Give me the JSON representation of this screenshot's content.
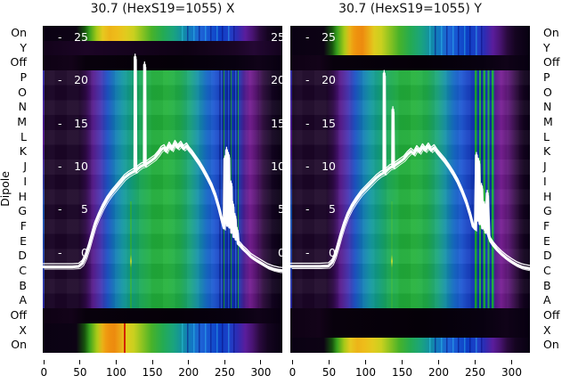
{
  "figure": {
    "titles": {
      "left": "30.7 (HexS19=1055) X",
      "right": "30.7 (HexS19=1055) Y"
    },
    "dipole_axis_label": "Dipole",
    "row_labels": [
      "On",
      "Y",
      "Off",
      "P",
      "O",
      "N",
      "M",
      "L",
      "K",
      "J",
      "I",
      "H",
      "G",
      "F",
      "E",
      "D",
      "C",
      "B",
      "A",
      "Off",
      "X",
      "On"
    ],
    "yticks_inside": [
      {
        "dash": "-",
        "label": "25"
      },
      {
        "dash": "-",
        "label": "20"
      },
      {
        "dash": "-",
        "label": "15"
      },
      {
        "dash": "-",
        "label": "10"
      },
      {
        "dash": "-",
        "label": "5"
      },
      {
        "dash": "-",
        "label": "0"
      }
    ],
    "yticks_right": [
      {
        "label": "25"
      },
      {
        "label": "20"
      },
      {
        "label": "15"
      },
      {
        "label": "10"
      },
      {
        "label": "5"
      },
      {
        "label": "0"
      }
    ],
    "xticks": [
      {
        "label": "0"
      },
      {
        "label": "50"
      },
      {
        "label": "100"
      },
      {
        "label": "150"
      },
      {
        "label": "200"
      },
      {
        "label": "250"
      },
      {
        "label": "300"
      }
    ],
    "colors": {
      "curve": "#ffffff",
      "background": "#ffffff",
      "tick_text_inside": "#ffffff",
      "label_text": "#000000",
      "colormap": "nipy_spectral-like (black-purple-blue-green-yellow-orange)"
    }
  },
  "chart_data": {
    "type": "heatmap",
    "description": "Two heatmap panels (dipole rows vs position 0-330) with overlaid white line profiles",
    "x_range": [
      0,
      330
    ],
    "y_value_range": [
      0,
      25
    ],
    "row_categories": [
      "On",
      "Y",
      "Off",
      "P",
      "O",
      "N",
      "M",
      "L",
      "K",
      "J",
      "I",
      "H",
      "G",
      "F",
      "E",
      "D",
      "C",
      "B",
      "A",
      "Off",
      "X",
      "On"
    ],
    "panels": [
      {
        "title": "30.7 (HexS19=1055) X",
        "bright_rows_top": [
          "On"
        ],
        "bright_rows_bottom": [
          "X",
          "On"
        ],
        "dark_rows": [
          "Y",
          "Off",
          "Off"
        ],
        "red_marker_x": 112,
        "curve": [
          [
            0,
            -1.6
          ],
          [
            20,
            -1.6
          ],
          [
            40,
            -1.6
          ],
          [
            49,
            -1.55
          ],
          [
            54,
            -1.2
          ],
          [
            58,
            -0.5
          ],
          [
            63,
            0.8
          ],
          [
            67,
            2.0
          ],
          [
            71,
            3.2
          ],
          [
            76,
            4.2
          ],
          [
            82,
            5.3
          ],
          [
            88,
            6.2
          ],
          [
            94,
            6.9
          ],
          [
            100,
            7.5
          ],
          [
            106,
            8.1
          ],
          [
            112,
            8.7
          ],
          [
            118,
            9.1
          ],
          [
            124,
            9.4
          ],
          [
            126.6,
            9.5
          ],
          [
            127,
            22.7
          ],
          [
            127.6,
            9.5
          ],
          [
            131,
            9.8
          ],
          [
            136,
            10.1
          ],
          [
            139.6,
            10.2
          ],
          [
            140,
            21.8
          ],
          [
            140.6,
            10.2
          ],
          [
            144,
            10.4
          ],
          [
            149,
            10.7
          ],
          [
            154,
            11.0
          ],
          [
            159,
            11.5
          ],
          [
            163,
            12.0
          ],
          [
            167,
            12.2
          ],
          [
            170,
            11.8
          ],
          [
            174,
            12.5
          ],
          [
            178,
            12.0
          ],
          [
            182,
            12.7
          ],
          [
            186,
            12.2
          ],
          [
            190,
            12.6
          ],
          [
            194,
            12.1
          ],
          [
            198,
            12.4
          ],
          [
            202,
            11.9
          ],
          [
            206,
            11.5
          ],
          [
            211,
            10.9
          ],
          [
            216,
            10.3
          ],
          [
            221,
            9.6
          ],
          [
            227,
            8.7
          ],
          [
            233,
            7.7
          ],
          [
            238,
            6.6
          ],
          [
            243,
            5.2
          ],
          [
            247,
            3.8
          ],
          [
            250,
            2.9
          ],
          [
            251,
            10.9
          ],
          [
            252,
            3.5
          ],
          [
            253.5,
            11.9
          ],
          [
            254.5,
            3.2
          ],
          [
            256,
            11.3
          ],
          [
            257,
            4.0
          ],
          [
            258,
            3.0
          ],
          [
            259.5,
            8.0
          ],
          [
            260.5,
            2.4
          ],
          [
            262,
            5.6
          ],
          [
            263.5,
            1.9
          ],
          [
            265,
            4.2
          ],
          [
            266.5,
            1.6
          ],
          [
            268,
            2.6
          ],
          [
            269.5,
            1.1
          ],
          [
            272,
            0.9
          ],
          [
            276,
            0.5
          ],
          [
            281,
            0.1
          ],
          [
            287,
            -0.4
          ],
          [
            294,
            -0.8
          ],
          [
            302,
            -1.2
          ],
          [
            310,
            -1.6
          ],
          [
            318,
            -1.85
          ],
          [
            326,
            -2.0
          ],
          [
            331,
            -2.05
          ]
        ]
      },
      {
        "title": "30.7 (HexS19=1055) Y",
        "bright_rows_top": [
          "On",
          "Y"
        ],
        "bright_rows_bottom": [
          "On"
        ],
        "dark_rows": [
          "Off",
          "Off",
          "X"
        ],
        "curve": [
          [
            0,
            -1.55
          ],
          [
            20,
            -1.55
          ],
          [
            40,
            -1.55
          ],
          [
            52,
            -1.5
          ],
          [
            57,
            -1.1
          ],
          [
            61,
            -0.3
          ],
          [
            65,
            0.9
          ],
          [
            69,
            2.1
          ],
          [
            73,
            3.2
          ],
          [
            78,
            4.3
          ],
          [
            84,
            5.3
          ],
          [
            90,
            6.1
          ],
          [
            97,
            6.9
          ],
          [
            104,
            7.5
          ],
          [
            111,
            8.1
          ],
          [
            118,
            8.7
          ],
          [
            124,
            9.1
          ],
          [
            128.6,
            9.3
          ],
          [
            129,
            20.8
          ],
          [
            129.6,
            9.3
          ],
          [
            133,
            9.6
          ],
          [
            137,
            9.9
          ],
          [
            140.6,
            10.0
          ],
          [
            141,
            16.6
          ],
          [
            141.6,
            10.0
          ],
          [
            146,
            10.3
          ],
          [
            151,
            10.6
          ],
          [
            156,
            10.9
          ],
          [
            161,
            11.4
          ],
          [
            166,
            11.8
          ],
          [
            170,
            11.5
          ],
          [
            174,
            12.1
          ],
          [
            178,
            11.7
          ],
          [
            182,
            12.3
          ],
          [
            186,
            11.9
          ],
          [
            190,
            12.4
          ],
          [
            194,
            11.9
          ],
          [
            198,
            12.2
          ],
          [
            203,
            11.6
          ],
          [
            208,
            11.1
          ],
          [
            213,
            10.6
          ],
          [
            219,
            9.9
          ],
          [
            225,
            9.1
          ],
          [
            231,
            8.2
          ],
          [
            237,
            7.1
          ],
          [
            243,
            5.8
          ],
          [
            248,
            4.4
          ],
          [
            252,
            3.1
          ],
          [
            255,
            2.8
          ],
          [
            256.5,
            11.3
          ],
          [
            258,
            3.8
          ],
          [
            259.5,
            10.6
          ],
          [
            261.5,
            3.4
          ],
          [
            263.5,
            7.7
          ],
          [
            265,
            2.9
          ],
          [
            267.5,
            5.6
          ],
          [
            269.5,
            2.4
          ],
          [
            271.5,
            6.9
          ],
          [
            273.5,
            2.0
          ],
          [
            276,
            1.4
          ],
          [
            280,
            0.9
          ],
          [
            285,
            0.4
          ],
          [
            291,
            -0.1
          ],
          [
            298,
            -0.6
          ],
          [
            305,
            -1.0
          ],
          [
            312,
            -1.35
          ],
          [
            319,
            -1.6
          ],
          [
            324,
            -1.7
          ],
          [
            330,
            -1.8
          ]
        ]
      }
    ],
    "x_ticks": [
      0,
      50,
      100,
      150,
      200,
      250,
      300
    ],
    "y_ticks": [
      25,
      20,
      15,
      10,
      5,
      0
    ],
    "grid": false,
    "legend": false
  }
}
